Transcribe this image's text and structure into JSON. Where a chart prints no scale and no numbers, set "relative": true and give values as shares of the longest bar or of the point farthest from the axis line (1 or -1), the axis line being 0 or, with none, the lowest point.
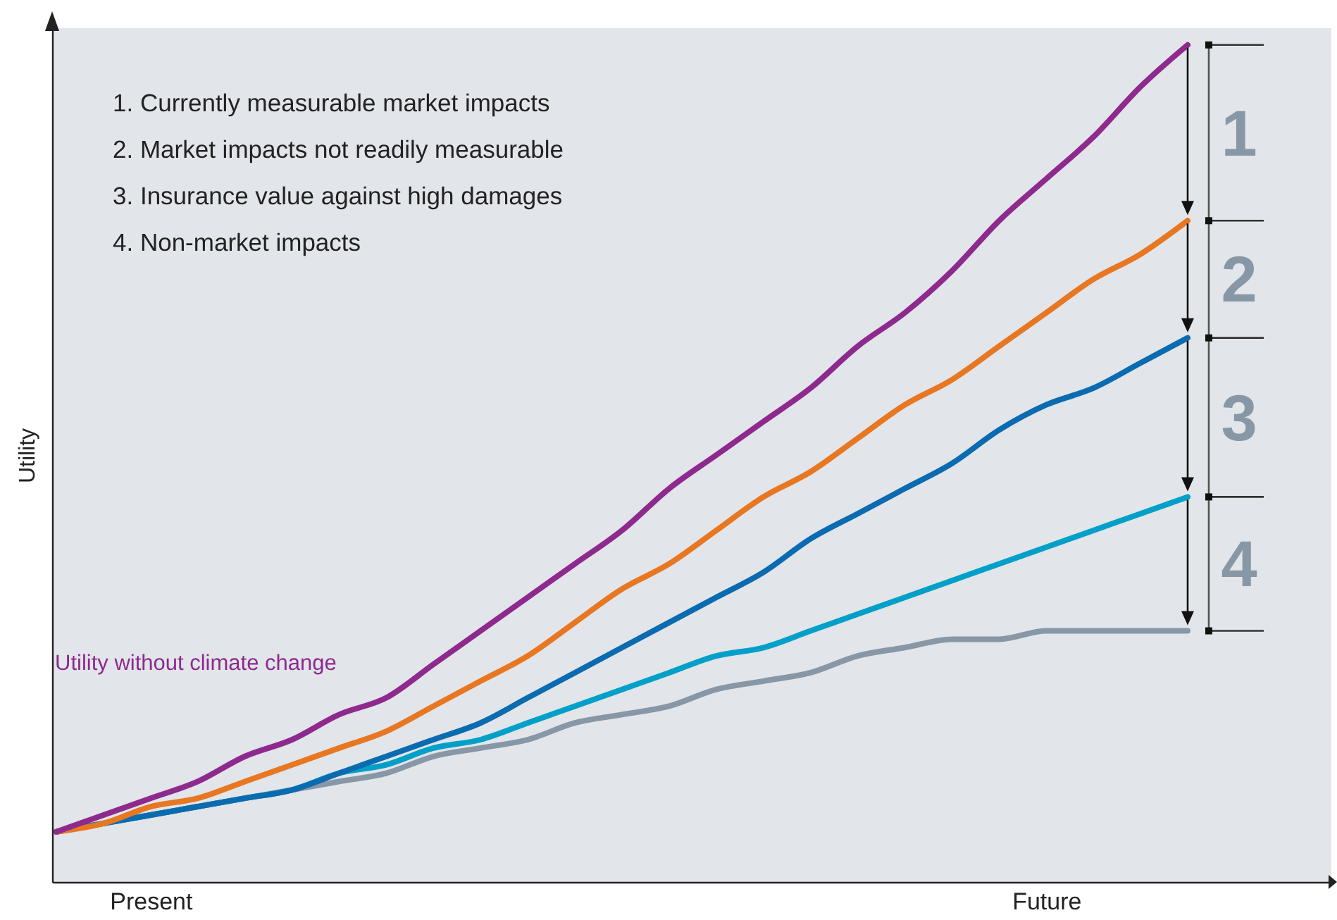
{
  "chart_data": {
    "type": "line",
    "relative": true,
    "ylabel": "Utility",
    "marker": "none",
    "line_style": "solid",
    "categories": [
      null,
      null,
      "Present",
      null,
      null,
      null,
      null,
      null,
      null,
      null,
      null,
      null,
      null,
      null,
      null,
      null,
      null,
      null,
      null,
      null,
      null,
      "Future",
      null,
      null,
      null
    ],
    "series": [
      {
        "name": "Utility without climate change",
        "color": "#8e2a8e",
        "values": [
          0.06,
          0.08,
          0.1,
          0.12,
          0.15,
          0.17,
          0.2,
          0.22,
          0.26,
          0.3,
          0.34,
          0.38,
          0.42,
          0.47,
          0.51,
          0.55,
          0.59,
          0.64,
          0.68,
          0.73,
          0.79,
          0.84,
          0.89,
          0.95,
          1
        ]
      },
      {
        "color": "#e87722",
        "values": [
          0.06,
          0.07,
          0.09,
          0.1,
          0.12,
          0.14,
          0.16,
          0.18,
          0.21,
          0.24,
          0.27,
          0.31,
          0.35,
          0.38,
          0.42,
          0.46,
          0.49,
          0.53,
          0.57,
          0.6,
          0.64,
          0.68,
          0.72,
          0.75,
          0.79
        ]
      },
      {
        "color": "#0b6bb0",
        "values": [
          0.06,
          0.07,
          0.08,
          0.09,
          0.1,
          0.11,
          0.13,
          0.15,
          0.17,
          0.19,
          0.22,
          0.25,
          0.28,
          0.31,
          0.34,
          0.37,
          0.41,
          0.44,
          0.47,
          0.5,
          0.54,
          0.57,
          0.59,
          0.62,
          0.65
        ]
      },
      {
        "color": "#00a0c8",
        "values": [
          0.06,
          0.07,
          0.08,
          0.09,
          0.1,
          0.11,
          0.13,
          0.14,
          0.16,
          0.17,
          0.19,
          0.21,
          0.23,
          0.25,
          0.27,
          0.28,
          0.3,
          0.32,
          0.34,
          0.36,
          0.38,
          0.4,
          0.42,
          0.44,
          0.46
        ]
      },
      {
        "color": "#8797a6",
        "values": [
          0.06,
          0.07,
          0.08,
          0.09,
          0.1,
          0.11,
          0.12,
          0.13,
          0.15,
          0.16,
          0.17,
          0.19,
          0.2,
          0.21,
          0.23,
          0.24,
          0.25,
          0.27,
          0.28,
          0.29,
          0.29,
          0.3,
          0.3,
          0.3,
          0.3
        ]
      }
    ],
    "annotations": [
      "1. Currently measurable market impacts",
      "2. Market impacts not readily measurable",
      "3. Insurance value against high damages",
      "4. Non-market impacts",
      "1",
      "2",
      "3",
      "4"
    ]
  }
}
